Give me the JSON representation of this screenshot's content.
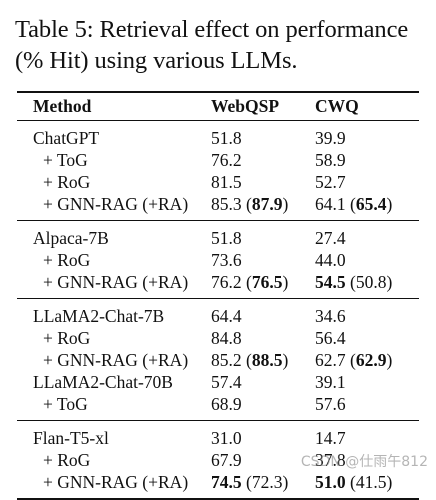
{
  "caption": {
    "line1": "Table 5: Retrieval effect on performance",
    "line2": "(% Hit) using various LLMs."
  },
  "table": {
    "headers": [
      "Method",
      "WebQSP",
      "CWQ"
    ],
    "groups": [
      {
        "rows": [
          {
            "method": "ChatGPT",
            "webqsp": "51.8",
            "cwq": "39.9"
          },
          {
            "method": "+ ToG",
            "webqsp": "76.2",
            "cwq": "58.9"
          },
          {
            "method": "+ RoG",
            "webqsp": "81.5",
            "cwq": "52.7"
          },
          {
            "method": "+ GNN-RAG (+RA)",
            "webqsp_main": "85.3",
            "webqsp_paren": "87.9",
            "cwq_main": "64.1",
            "cwq_paren": "65.4"
          }
        ]
      },
      {
        "rows": [
          {
            "method": "Alpaca-7B",
            "webqsp": "51.8",
            "cwq": "27.4"
          },
          {
            "method": "+ RoG",
            "webqsp": "73.6",
            "cwq": "44.0"
          },
          {
            "method": "+ GNN-RAG (+RA)",
            "webqsp_main": "76.2",
            "webqsp_paren": "76.5",
            "cwq_main": "54.5",
            "cwq_paren": "50.8"
          }
        ]
      },
      {
        "rows": [
          {
            "method": "LLaMA2-Chat-7B",
            "webqsp": "64.4",
            "cwq": "34.6"
          },
          {
            "method": "+ RoG",
            "webqsp": "84.8",
            "cwq": "56.4"
          },
          {
            "method": "+ GNN-RAG (+RA)",
            "webqsp_main": "85.2",
            "webqsp_paren": "88.5",
            "cwq_main": "62.7",
            "cwq_paren": "62.9"
          },
          {
            "method": "LLaMA2-Chat-70B",
            "webqsp": "57.4",
            "cwq": "39.1"
          },
          {
            "method": "+ ToG",
            "webqsp": "68.9",
            "cwq": "57.6"
          }
        ]
      },
      {
        "rows": [
          {
            "method": "Flan-T5-xl",
            "webqsp": "31.0",
            "cwq": "14.7"
          },
          {
            "method": "+ RoG",
            "webqsp": "67.9",
            "cwq": "37.8"
          },
          {
            "method": "+ GNN-RAG (+RA)",
            "webqsp_main": "74.5",
            "webqsp_paren": "72.3",
            "cwq_main": "51.0",
            "cwq_paren": "41.5"
          }
        ]
      }
    ]
  },
  "watermark": "CSDN @仕雨午812"
}
